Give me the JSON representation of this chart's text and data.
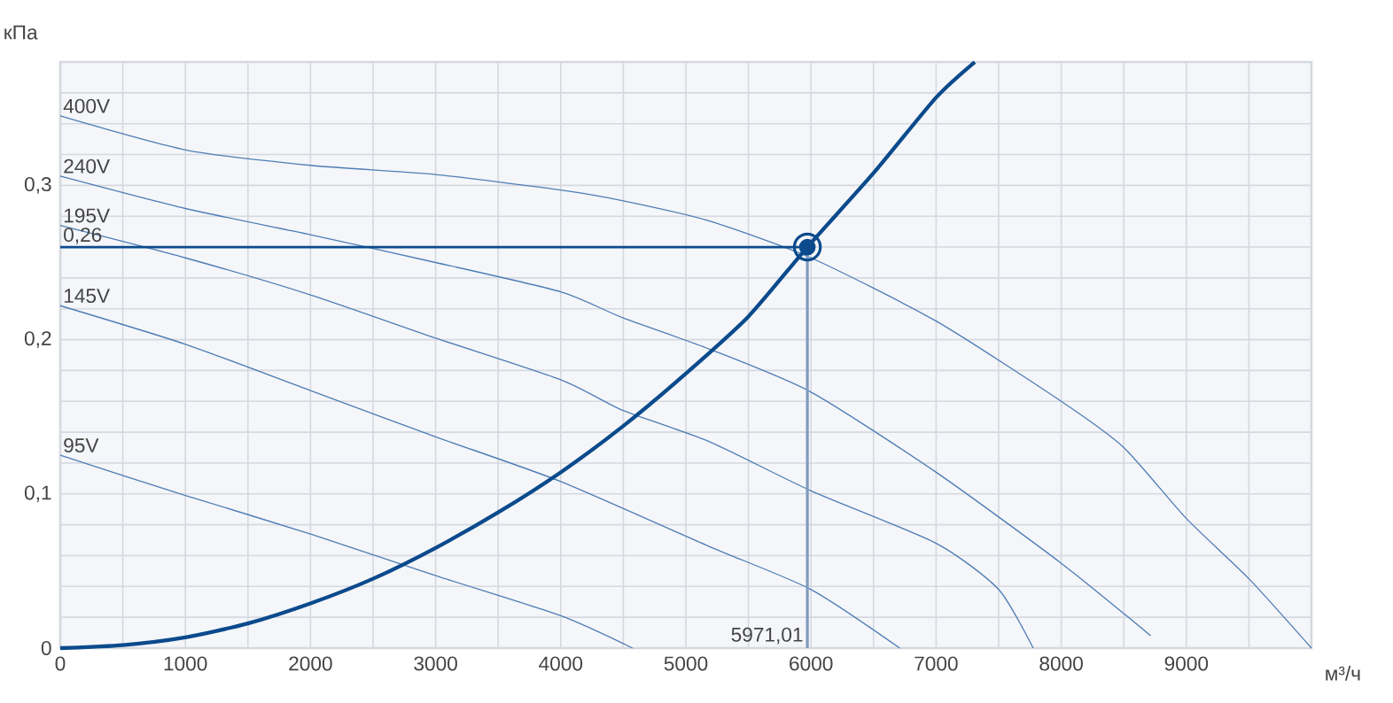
{
  "chart_data": {
    "type": "line",
    "xlabel": "м³/ч",
    "ylabel": "кПа",
    "xlim": [
      0,
      10000
    ],
    "ylim": [
      0,
      0.38
    ],
    "xticks": [
      0,
      {
        "value": 500,
        "label": null
      },
      1000,
      {
        "value": 1500,
        "label": null
      },
      2000,
      {
        "value": 2500,
        "label": null
      },
      3000,
      {
        "value": 3500,
        "label": null
      },
      4000,
      {
        "value": 4500,
        "label": null
      },
      5000,
      {
        "value": 5500,
        "label": null
      },
      6000,
      {
        "value": 6500,
        "label": null
      },
      7000,
      {
        "value": 7500,
        "label": null
      },
      8000,
      {
        "value": 8500,
        "label": null
      },
      9000,
      {
        "value": 9500,
        "label": null
      },
      {
        "value": 10000,
        "label": null
      }
    ],
    "yticks": [
      0,
      {
        "value": 0.02,
        "label": null
      },
      {
        "value": 0.04,
        "label": null
      },
      {
        "value": 0.06,
        "label": null
      },
      {
        "value": 0.08,
        "label": null
      },
      {
        "value": 0.1,
        "label": "0,1"
      },
      {
        "value": 0.12,
        "label": null
      },
      {
        "value": 0.14,
        "label": null
      },
      {
        "value": 0.16,
        "label": null
      },
      {
        "value": 0.18,
        "label": null
      },
      {
        "value": 0.2,
        "label": "0,2"
      },
      {
        "value": 0.22,
        "label": null
      },
      {
        "value": 0.24,
        "label": null
      },
      {
        "value": 0.26,
        "label": null
      },
      {
        "value": 0.28,
        "label": null
      },
      {
        "value": 0.3,
        "label": "0,3"
      },
      {
        "value": 0.32,
        "label": null
      },
      {
        "value": 0.34,
        "label": null
      },
      {
        "value": 0.36,
        "label": null
      }
    ],
    "grid": true,
    "series": [
      {
        "name": "400V",
        "color": "#4f7db5",
        "x": [
          0,
          1000,
          2000,
          3000,
          4000,
          4500,
          5184,
          6000,
          7000,
          8000,
          8500,
          9000,
          9500,
          10000
        ],
        "values": [
          0.345,
          0.323,
          0.313,
          0.307,
          0.297,
          0.29,
          0.277,
          0.253,
          0.212,
          0.16,
          0.13,
          0.084,
          0.045,
          0
        ]
      },
      {
        "name": "240V",
        "color": "#4f7db5",
        "x": [
          0,
          1000,
          2000,
          3000,
          4000,
          4500,
          5184,
          6000,
          7000,
          8000,
          8715
        ],
        "values": [
          0.306,
          0.285,
          0.268,
          0.25,
          0.231,
          0.214,
          0.194,
          0.166,
          0.114,
          0.055,
          0.008
        ]
      },
      {
        "name": "195V",
        "color": "#4f7db5",
        "x": [
          0,
          1000,
          2000,
          3000,
          4000,
          4500,
          5184,
          6000,
          7000,
          7500,
          7776
        ],
        "values": [
          0.274,
          0.253,
          0.229,
          0.201,
          0.174,
          0.154,
          0.134,
          0.102,
          0.068,
          0.038,
          0
        ]
      },
      {
        "name": "145V",
        "color": "#4f7db5",
        "x": [
          0,
          1000,
          2000,
          3000,
          4000,
          5184,
          6000,
          6710
        ],
        "values": [
          0.222,
          0.197,
          0.167,
          0.137,
          0.108,
          0.066,
          0.038,
          0
        ]
      },
      {
        "name": "95V",
        "color": "#4f7db5",
        "x": [
          0,
          1000,
          2000,
          3000,
          4000,
          4574
        ],
        "values": [
          0.125,
          0.099,
          0.074,
          0.047,
          0.021,
          0
        ]
      },
      {
        "color": "#0b4a8c",
        "x": [
          0,
          500,
          1000,
          1500,
          2000,
          2500,
          3000,
          3500,
          4000,
          4500,
          5000,
          5500,
          5971.01,
          6500,
          7000,
          7309
        ],
        "values": [
          0,
          0.002,
          0.007,
          0.016,
          0.029,
          0.045,
          0.065,
          0.088,
          0.114,
          0.144,
          0.178,
          0.215,
          0.26,
          0.308,
          0.357,
          0.38
        ]
      },
      {
        "type": "scatter",
        "marker": "circle",
        "color": "#0b4a8c",
        "x": [
          5971.01
        ],
        "values": [
          0.26
        ]
      }
    ],
    "ref_lines": [
      {
        "axis": "y",
        "value": 0.26,
        "label": "0,26",
        "color": "#0b4a8c"
      },
      {
        "axis": "x",
        "value": 5971.01,
        "label": "5971,01",
        "color": "#7e9bbd"
      }
    ]
  }
}
